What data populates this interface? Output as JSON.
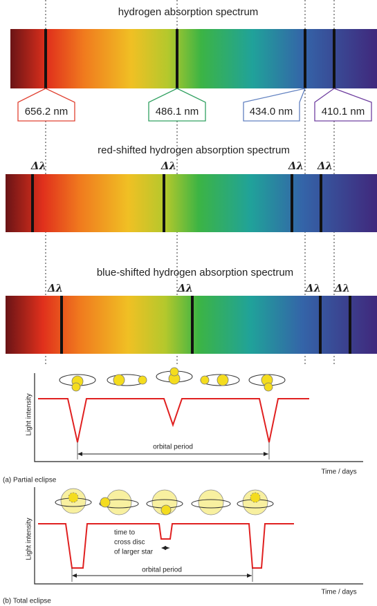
{
  "spectra": [
    {
      "title": "hydrogen absorption spectrum"
    },
    {
      "title": "red-shifted hydrogen absorption spectrum",
      "delta_labels": [
        "Δλ",
        "Δλ",
        "Δλ",
        "Δλ"
      ]
    },
    {
      "title": "blue-shifted hydrogen absorption spectrum",
      "delta_labels": [
        "Δλ",
        "Δλ",
        "Δλ",
        "Δλ"
      ]
    }
  ],
  "line_labels": [
    "656.2 nm",
    "486.1 nm",
    "434.0 nm",
    "410.1 nm"
  ],
  "partial_eclipse": {
    "y_label": "Light intensity",
    "period_label": "orbital period",
    "x_label": "Time / days",
    "caption": "(a) Partial eclipse"
  },
  "total_eclipse": {
    "y_label": "Light intensity",
    "note": [
      "time to",
      "cross disc",
      "of larger star"
    ],
    "period_label": "orbital period",
    "x_label": "Time / days",
    "caption": "(b) Total eclipse"
  }
}
